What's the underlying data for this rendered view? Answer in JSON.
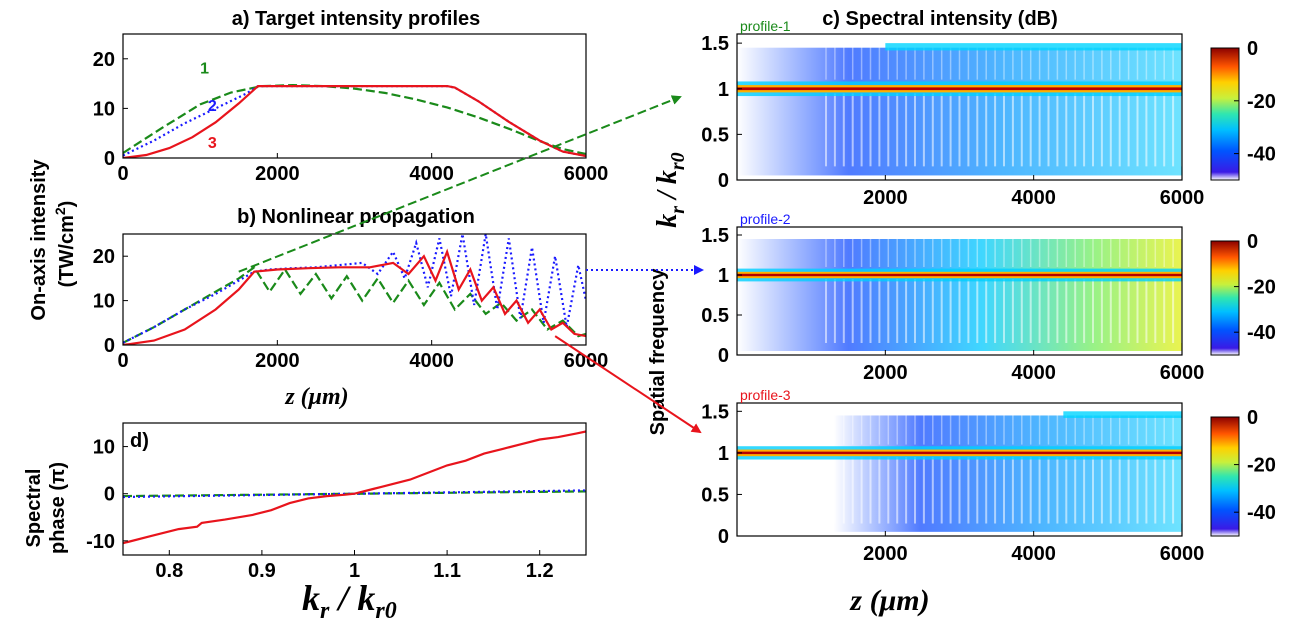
{
  "chart_data": [
    {
      "panel": "a",
      "type": "line",
      "title": "a) Target intensity profiles",
      "xlim": [
        0,
        6000
      ],
      "ylim": [
        0,
        25
      ],
      "xticks": [
        "0",
        "2000",
        "4000",
        "6000"
      ],
      "yticks": [
        "0",
        "10",
        "20"
      ],
      "series": [
        {
          "name": "1",
          "color": "#1a8a1a",
          "dash": "dashed",
          "x": [
            0,
            500,
            1000,
            1400,
            1800,
            2200,
            2600,
            3000,
            3400,
            3800,
            4200,
            4600,
            5000,
            5400,
            5700,
            6000
          ],
          "y": [
            1,
            6,
            10.8,
            13.2,
            14.5,
            14.7,
            14.5,
            14,
            13.1,
            11.8,
            10.2,
            8.2,
            5.9,
            3.4,
            1.8,
            0.8
          ]
        },
        {
          "name": "2",
          "color": "#1a1aff",
          "dash": "dotted",
          "x": [
            0,
            400,
            800,
            1200,
            1600,
            1750,
            2500,
            3500,
            4200,
            4300,
            4600,
            5000,
            5400,
            5700,
            6000
          ],
          "y": [
            0.5,
            3.5,
            7,
            10,
            13,
            14.5,
            14.5,
            14.5,
            14.5,
            14.2,
            11.5,
            7.3,
            3.5,
            1.3,
            0.4
          ]
        },
        {
          "name": "3",
          "color": "#e8141c",
          "dash": "solid",
          "x": [
            0,
            300,
            600,
            900,
            1200,
            1500,
            1750,
            2500,
            3500,
            4200,
            4300,
            4600,
            5000,
            5400,
            5700,
            6000
          ],
          "y": [
            0,
            0.6,
            2,
            4.2,
            7.2,
            11,
            14.5,
            14.5,
            14.5,
            14.5,
            14.2,
            11.5,
            7.3,
            3.5,
            1.3,
            0.4
          ]
        }
      ]
    },
    {
      "panel": "b",
      "type": "line",
      "title": "b) Nonlinear propagation",
      "xlabel": "z (μm)",
      "xlim": [
        0,
        6000
      ],
      "ylim": [
        0,
        25
      ],
      "xticks": [
        "0",
        "2000",
        "4000",
        "6000"
      ],
      "yticks": [
        "0",
        "10",
        "20"
      ],
      "series": [
        {
          "name": "1",
          "color": "#1a8a1a",
          "dash": "dashed",
          "x": [
            0,
            400,
            800,
            1200,
            1500,
            1700,
            1900,
            2100,
            2300,
            2500,
            2700,
            2900,
            3100,
            3300,
            3500,
            3700,
            3900,
            4100,
            4300,
            4500,
            4700,
            4900,
            5100,
            5300,
            5500,
            5700,
            5900,
            6000
          ],
          "y": [
            0.5,
            4,
            8,
            12,
            15,
            17.5,
            12,
            17,
            11.5,
            16,
            10.5,
            15.5,
            10,
            15,
            9.5,
            14.5,
            9,
            14,
            8,
            11.5,
            7,
            9.5,
            5.5,
            8,
            3.5,
            5.5,
            2,
            2.5
          ]
        },
        {
          "name": "2",
          "color": "#1a1aff",
          "dash": "dotted",
          "x": [
            0,
            400,
            800,
            1200,
            1500,
            1700,
            1900,
            2200,
            2500,
            2800,
            3100,
            3300,
            3500,
            3650,
            3800,
            3950,
            4100,
            4250,
            4400,
            4550,
            4700,
            4850,
            5000,
            5150,
            5300,
            5450,
            5600,
            5750,
            5900,
            6000
          ],
          "y": [
            0.5,
            4,
            8,
            11.5,
            14.5,
            16.5,
            17,
            17.3,
            17.5,
            18,
            18.5,
            16,
            21,
            15,
            23,
            13,
            24,
            11,
            25,
            9,
            25,
            8,
            24,
            6,
            22,
            5,
            20,
            4,
            18,
            10
          ]
        },
        {
          "name": "3",
          "color": "#e8141c",
          "dash": "solid",
          "x": [
            0,
            400,
            800,
            1200,
            1500,
            1700,
            2000,
            2400,
            2800,
            3200,
            3500,
            3700,
            3900,
            4050,
            4200,
            4350,
            4500,
            4650,
            4800,
            4950,
            5100,
            5250,
            5400,
            5550,
            5700,
            5850,
            6000
          ],
          "y": [
            0,
            1,
            3.5,
            8,
            12.5,
            16.5,
            17,
            17.3,
            17.5,
            17.5,
            18.5,
            16,
            20,
            14.5,
            21,
            12.5,
            17,
            10,
            13,
            7,
            10,
            5,
            8,
            3.5,
            5,
            2.5,
            2
          ]
        }
      ]
    },
    {
      "panel": "c",
      "type": "heatmap",
      "title": "c) Spectral intensity (dB)",
      "xlabel": "z (μm)",
      "ylabel": "Spatial frequency  k_r / k_r0",
      "xlim": [
        0,
        6000
      ],
      "ylim": [
        0,
        1.6
      ],
      "xticks": [
        "2000",
        "4000",
        "6000"
      ],
      "yticks": [
        "0",
        "0.5",
        "1",
        "1.5"
      ],
      "colorbar_ticks": [
        "0",
        "-20",
        "-40"
      ],
      "colorbar_range": [
        -50,
        0
      ],
      "subplots": [
        {
          "name": "profile-1",
          "color": "#1a8a1a"
        },
        {
          "name": "profile-2",
          "color": "#1a1aff"
        },
        {
          "name": "profile-3",
          "color": "#e8141c"
        }
      ]
    },
    {
      "panel": "d",
      "type": "line",
      "title": "d)",
      "ylabel_line1": "Spectral",
      "ylabel_line2": "phase (π)",
      "xlabel": "k_r / k_r0",
      "xlim": [
        0.75,
        1.25
      ],
      "ylim": [
        -13,
        15
      ],
      "xticks": [
        "0.8",
        "0.9",
        "1",
        "1.1",
        "1.2"
      ],
      "yticks": [
        "10",
        "0",
        "-10"
      ],
      "series": [
        {
          "name": "1",
          "color": "#1a8a1a",
          "dash": "dashed",
          "x": [
            0.75,
            1.25
          ],
          "y": [
            -0.5,
            0.5
          ]
        },
        {
          "name": "2",
          "color": "#1a1aff",
          "dash": "dotted",
          "x": [
            0.75,
            1.25
          ],
          "y": [
            -0.7,
            0.7
          ]
        },
        {
          "name": "3",
          "color": "#e8141c",
          "dash": "solid",
          "x": [
            0.75,
            0.78,
            0.81,
            0.83,
            0.835,
            0.86,
            0.89,
            0.91,
            0.93,
            0.95,
            0.97,
            0.99,
            1.0,
            1.02,
            1.04,
            1.06,
            1.08,
            1.1,
            1.12,
            1.14,
            1.16,
            1.18,
            1.2,
            1.22,
            1.24,
            1.25
          ],
          "y": [
            -10.5,
            -9,
            -7.5,
            -7,
            -6.2,
            -5.5,
            -4.5,
            -3.5,
            -2,
            -1,
            -0.5,
            -0.2,
            0,
            1,
            2,
            3,
            4.5,
            6,
            7,
            8.5,
            9.5,
            10.5,
            11.5,
            12,
            12.8,
            13.2
          ]
        }
      ]
    }
  ],
  "labels": {
    "ylabel_ab_line1": "On-axis intensity",
    "ylabel_ab_line2": "(TW/cm",
    "ylabel_ab_sup": "2",
    "ylabel_ab_close": ")"
  }
}
